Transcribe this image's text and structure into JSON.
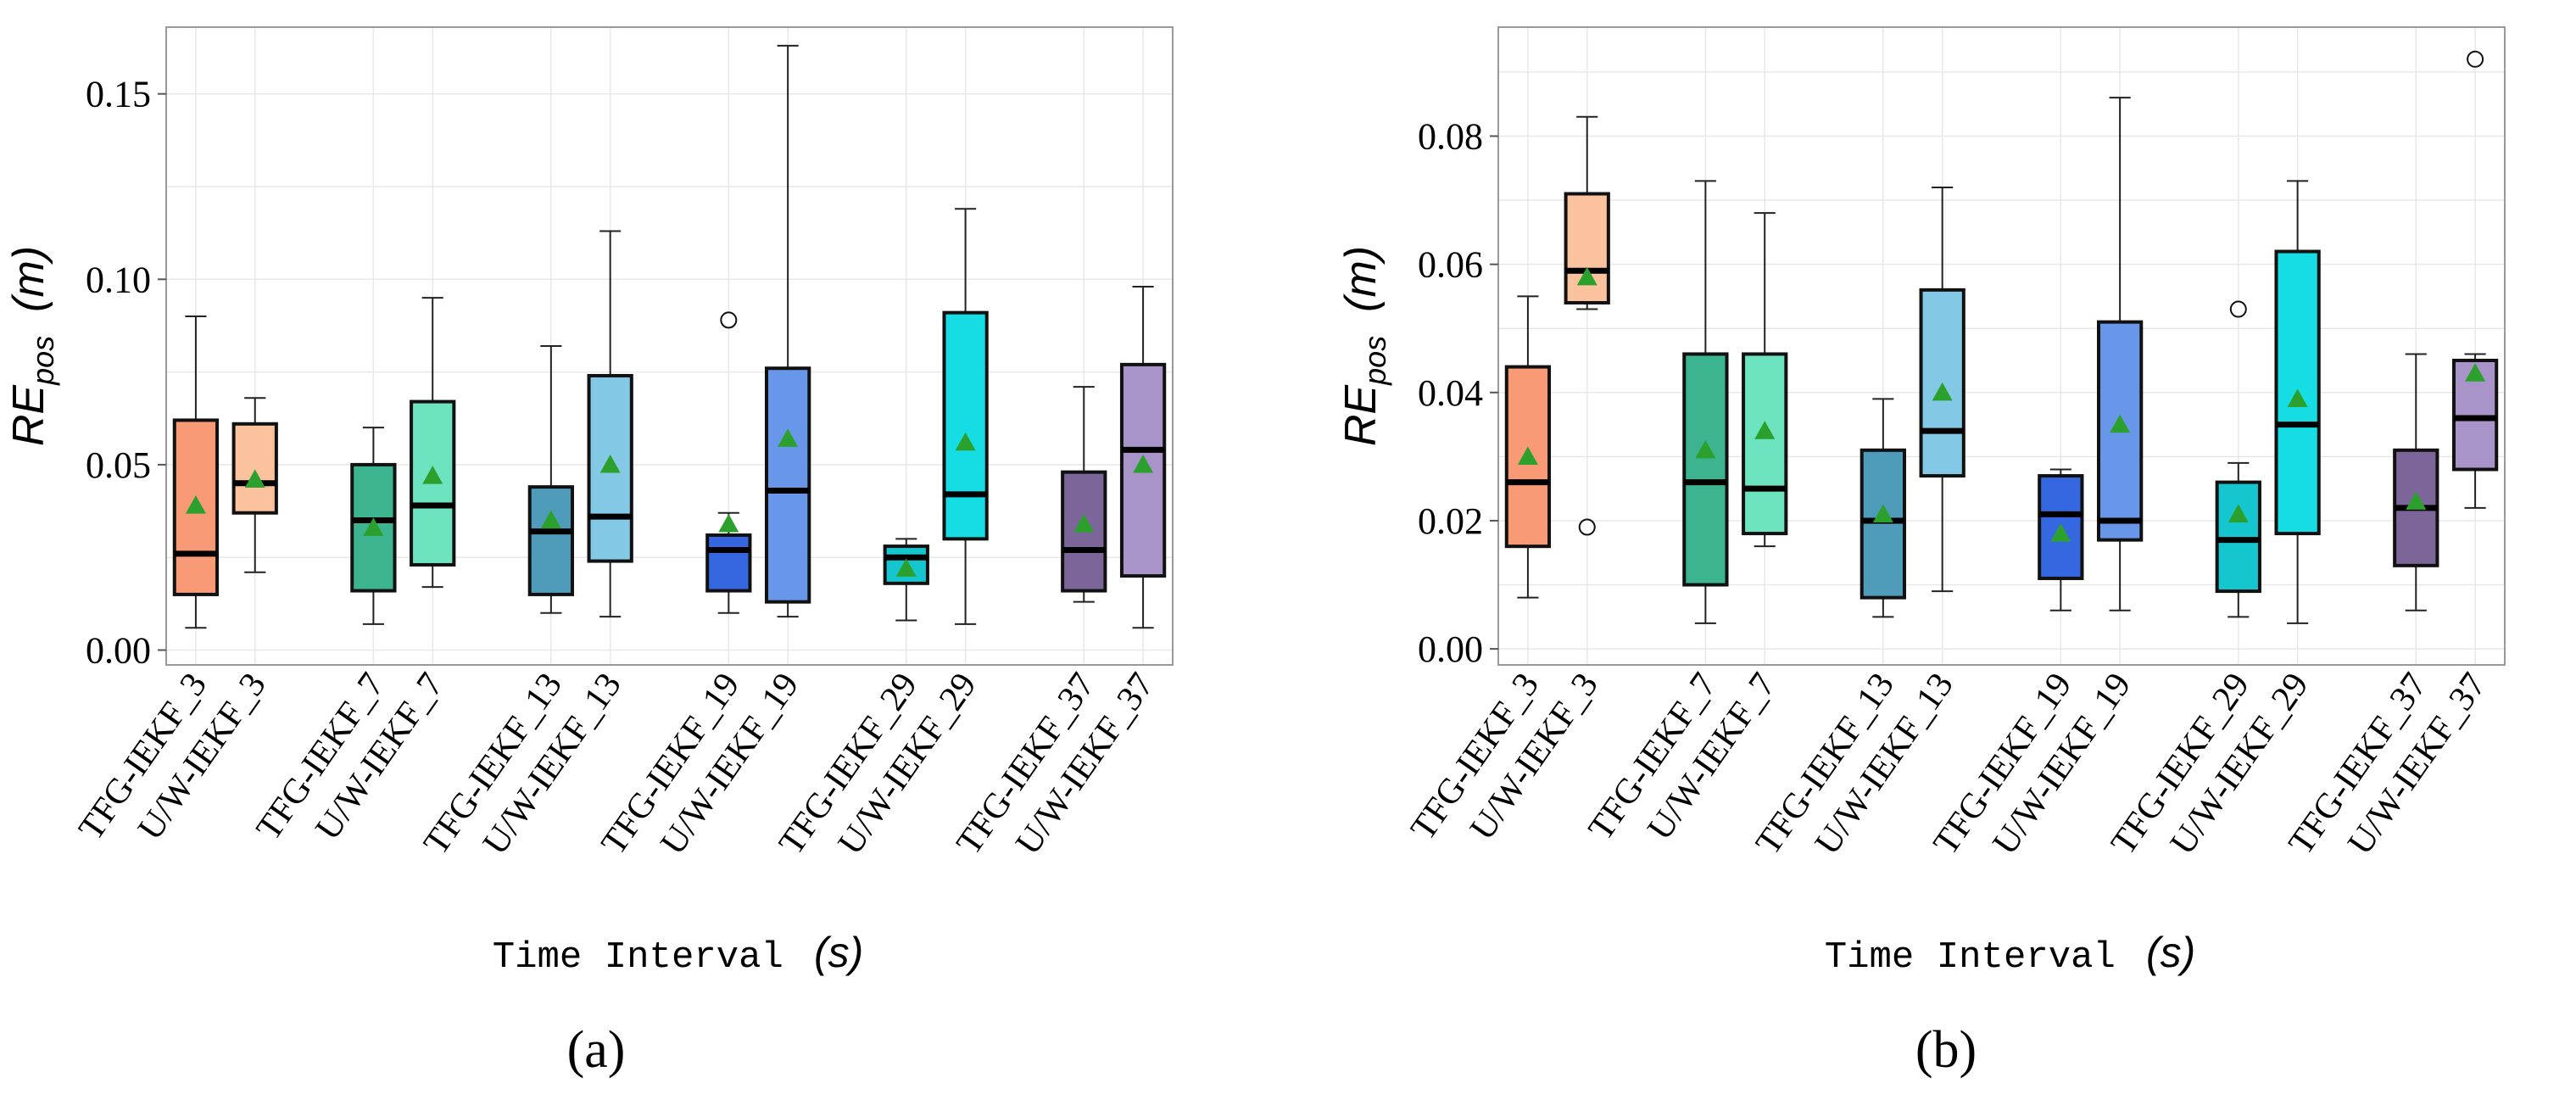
{
  "colors": {
    "mean_marker": "#2ca02c",
    "grid": "#e8e8e8",
    "frame": "#999999",
    "box_palette": [
      "#f99a76",
      "#fbc29e",
      "#3cb48f",
      "#6ee3bf",
      "#4f9cba",
      "#83c9e6",
      "#3568e0",
      "#6897ea",
      "#16c6cf",
      "#16dde4",
      "#7c6599",
      "#a894c9"
    ]
  },
  "chart_data": [
    {
      "type": "box",
      "panel_label": "(a)",
      "xlabel": "Time Interval",
      "xlabel_unit": "(s)",
      "ylabel": "RE",
      "ylabel_sub": "pos",
      "ylabel_unit": "(m)",
      "ylim": [
        -0.004,
        0.168
      ],
      "yticks": [
        0.0,
        0.05,
        0.1,
        0.15
      ],
      "ytick_labels": [
        "0.00",
        "0.05",
        "0.10",
        "0.15"
      ],
      "grid": true,
      "categories": [
        "TFG-IEKF_3",
        "U/W-IEKF_3",
        "TFG-IEKF_7",
        "U/W-IEKF_7",
        "TFG-IEKF_13",
        "U/W-IEKF_13",
        "TFG-IEKF_19",
        "U/W-IEKF_19",
        "TFG-IEKF_29",
        "U/W-IEKF_29",
        "TFG-IEKF_37",
        "U/W-IEKF_37"
      ],
      "boxes": [
        {
          "min": 0.006,
          "q1": 0.015,
          "median": 0.026,
          "q3": 0.062,
          "max": 0.09,
          "mean": 0.039,
          "outliers": []
        },
        {
          "min": 0.021,
          "q1": 0.037,
          "median": 0.045,
          "q3": 0.061,
          "max": 0.068,
          "mean": 0.046,
          "outliers": []
        },
        {
          "min": 0.007,
          "q1": 0.016,
          "median": 0.035,
          "q3": 0.05,
          "max": 0.06,
          "mean": 0.033,
          "outliers": []
        },
        {
          "min": 0.017,
          "q1": 0.023,
          "median": 0.039,
          "q3": 0.067,
          "max": 0.095,
          "mean": 0.047,
          "outliers": []
        },
        {
          "min": 0.01,
          "q1": 0.015,
          "median": 0.032,
          "q3": 0.044,
          "max": 0.082,
          "mean": 0.035,
          "outliers": []
        },
        {
          "min": 0.009,
          "q1": 0.024,
          "median": 0.036,
          "q3": 0.074,
          "max": 0.113,
          "mean": 0.05,
          "outliers": []
        },
        {
          "min": 0.01,
          "q1": 0.016,
          "median": 0.027,
          "q3": 0.031,
          "max": 0.037,
          "mean": 0.034,
          "outliers": [
            0.089
          ]
        },
        {
          "min": 0.009,
          "q1": 0.013,
          "median": 0.043,
          "q3": 0.076,
          "max": 0.163,
          "mean": 0.057,
          "outliers": []
        },
        {
          "min": 0.008,
          "q1": 0.018,
          "median": 0.025,
          "q3": 0.028,
          "max": 0.03,
          "mean": 0.022,
          "outliers": []
        },
        {
          "min": 0.007,
          "q1": 0.03,
          "median": 0.042,
          "q3": 0.091,
          "max": 0.119,
          "mean": 0.056,
          "outliers": []
        },
        {
          "min": 0.013,
          "q1": 0.016,
          "median": 0.027,
          "q3": 0.048,
          "max": 0.071,
          "mean": 0.034,
          "outliers": []
        },
        {
          "min": 0.006,
          "q1": 0.02,
          "median": 0.054,
          "q3": 0.077,
          "max": 0.098,
          "mean": 0.05,
          "outliers": []
        }
      ]
    },
    {
      "type": "box",
      "panel_label": "(b)",
      "xlabel": "Time Interval",
      "xlabel_unit": "(s)",
      "ylabel": "RE",
      "ylabel_sub": "pos",
      "ylabel_unit": "(m)",
      "ylim": [
        -0.0025,
        0.097
      ],
      "yticks": [
        0.0,
        0.02,
        0.04,
        0.06,
        0.08
      ],
      "ytick_labels": [
        "0.00",
        "0.02",
        "0.04",
        "0.06",
        "0.08"
      ],
      "grid": true,
      "categories": [
        "TFG-IEKF_3",
        "U/W-IEKF_3",
        "TFG-IEKF_7",
        "U/W-IEKF_7",
        "TFG-IEKF_13",
        "U/W-IEKF_13",
        "TFG-IEKF_19",
        "U/W-IEKF_19",
        "TFG-IEKF_29",
        "U/W-IEKF_29",
        "TFG-IEKF_37",
        "U/W-IEKF_37"
      ],
      "boxes": [
        {
          "min": 0.008,
          "q1": 0.016,
          "median": 0.026,
          "q3": 0.044,
          "max": 0.055,
          "mean": 0.03,
          "outliers": []
        },
        {
          "min": 0.053,
          "q1": 0.054,
          "median": 0.059,
          "q3": 0.071,
          "max": 0.083,
          "mean": 0.058,
          "outliers": [
            0.019
          ]
        },
        {
          "min": 0.004,
          "q1": 0.01,
          "median": 0.026,
          "q3": 0.046,
          "max": 0.073,
          "mean": 0.031,
          "outliers": []
        },
        {
          "min": 0.016,
          "q1": 0.018,
          "median": 0.025,
          "q3": 0.046,
          "max": 0.068,
          "mean": 0.034,
          "outliers": []
        },
        {
          "min": 0.005,
          "q1": 0.008,
          "median": 0.02,
          "q3": 0.031,
          "max": 0.039,
          "mean": 0.021,
          "outliers": []
        },
        {
          "min": 0.009,
          "q1": 0.027,
          "median": 0.034,
          "q3": 0.056,
          "max": 0.072,
          "mean": 0.04,
          "outliers": []
        },
        {
          "min": 0.006,
          "q1": 0.011,
          "median": 0.021,
          "q3": 0.027,
          "max": 0.028,
          "mean": 0.018,
          "outliers": []
        },
        {
          "min": 0.006,
          "q1": 0.017,
          "median": 0.02,
          "q3": 0.051,
          "max": 0.086,
          "mean": 0.035,
          "outliers": []
        },
        {
          "min": 0.005,
          "q1": 0.009,
          "median": 0.017,
          "q3": 0.026,
          "max": 0.029,
          "mean": 0.021,
          "outliers": [
            0.053
          ]
        },
        {
          "min": 0.004,
          "q1": 0.018,
          "median": 0.035,
          "q3": 0.062,
          "max": 0.073,
          "mean": 0.039,
          "outliers": []
        },
        {
          "min": 0.006,
          "q1": 0.013,
          "median": 0.022,
          "q3": 0.031,
          "max": 0.046,
          "mean": 0.023,
          "outliers": []
        },
        {
          "min": 0.022,
          "q1": 0.028,
          "median": 0.036,
          "q3": 0.045,
          "max": 0.046,
          "mean": 0.043,
          "outliers": [
            0.092
          ]
        }
      ]
    }
  ]
}
